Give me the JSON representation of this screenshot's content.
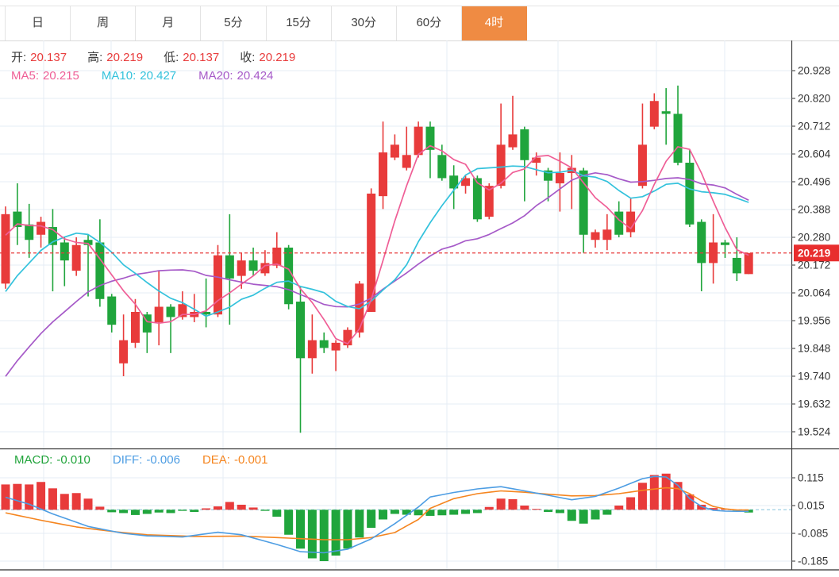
{
  "tabs": {
    "items": [
      {
        "label": "日",
        "selected": false
      },
      {
        "label": "周",
        "selected": false
      },
      {
        "label": "月",
        "selected": false
      },
      {
        "label": "5分",
        "selected": false
      },
      {
        "label": "15分",
        "selected": false
      },
      {
        "label": "30分",
        "selected": false
      },
      {
        "label": "60分",
        "selected": false
      },
      {
        "label": "4时",
        "selected": true
      }
    ]
  },
  "ohlc_legend": {
    "items": [
      {
        "label": "开:",
        "value": "20.137"
      },
      {
        "label": "高:",
        "value": "20.219"
      },
      {
        "label": "低:",
        "value": "20.137"
      },
      {
        "label": "收:",
        "value": "20.219"
      }
    ]
  },
  "ma_legend": {
    "items": [
      {
        "label": "MA5:",
        "value": "20.215",
        "color": "#ef5e96"
      },
      {
        "label": "MA10:",
        "value": "20.427",
        "color": "#33c2dc"
      },
      {
        "label": "MA20:",
        "value": "20.424",
        "color": "#a65ac8"
      }
    ]
  },
  "macd_legend": {
    "items": [
      {
        "label": "MACD:",
        "value": "-0.010",
        "color": "#21a43b"
      },
      {
        "label": "DIFF:",
        "value": "-0.006",
        "color": "#4d9de3"
      },
      {
        "label": "DEA:",
        "value": "-0.001",
        "color": "#f5851f"
      }
    ]
  },
  "price_axis": {
    "tick_labels": [
      "20.928",
      "20.820",
      "20.712",
      "20.604",
      "20.496",
      "20.388",
      "20.280",
      "20.172",
      "20.064",
      "19.956",
      "19.848",
      "19.740",
      "19.632",
      "19.524"
    ],
    "current_price_label": "20.219"
  },
  "macd_axis": {
    "tick_labels": [
      "0.115",
      "0.015",
      "-0.085",
      "-0.185"
    ]
  },
  "colors": {
    "up": "#e83b3b",
    "down": "#20a53c",
    "ma5": "#ef5e96",
    "ma10": "#33c2dc",
    "ma20": "#a65ac8",
    "diff": "#4d9de3",
    "dea": "#f5851f",
    "accent_tab": "#ef8b43",
    "badge": "#e82e2e",
    "grid": "#e6ecf4",
    "axis_line": "#3c3c3c",
    "dashed_price": "#e83b3b",
    "dashed_zero": "#9fd0e4",
    "label_text": "#3a3a3a",
    "value_red": "#e83b3b"
  },
  "chart_data": {
    "type": "candlestick",
    "timeframe": "4时",
    "panels": [
      {
        "name": "price",
        "type": "candlestick+ma",
        "y_ticks": [
          20.928,
          20.82,
          20.712,
          20.604,
          20.496,
          20.388,
          20.28,
          20.172,
          20.064,
          19.956,
          19.848,
          19.74,
          19.632,
          19.524
        ],
        "ylim": [
          19.45,
          20.99
        ],
        "current_price": 20.219,
        "ohlc_latest": {
          "open": 20.137,
          "high": 20.219,
          "low": 20.137,
          "close": 20.219
        },
        "ma_periods": [
          5,
          10,
          20
        ],
        "ma_latest": {
          "MA5": 20.215,
          "MA10": 20.427,
          "MA20": 20.424
        },
        "up_means": "close>=open (red)",
        "candles_ohlc": [
          [
            20.1,
            20.4,
            20.08,
            20.37
          ],
          [
            20.38,
            20.49,
            20.25,
            20.32
          ],
          [
            20.33,
            20.41,
            20.2,
            20.27
          ],
          [
            20.29,
            20.36,
            20.24,
            20.34
          ],
          [
            20.32,
            20.39,
            20.07,
            20.25
          ],
          [
            20.26,
            20.28,
            20.09,
            20.19
          ],
          [
            20.15,
            20.28,
            20.13,
            20.25
          ],
          [
            20.27,
            20.29,
            20.05,
            20.25
          ],
          [
            20.26,
            20.35,
            20.01,
            20.04
          ],
          [
            20.05,
            20.06,
            19.91,
            19.94
          ],
          [
            19.79,
            19.98,
            19.74,
            19.88
          ],
          [
            19.87,
            20.04,
            19.85,
            19.99
          ],
          [
            19.98,
            19.99,
            19.83,
            19.91
          ],
          [
            19.95,
            20.15,
            19.86,
            20.01
          ],
          [
            20.01,
            20.02,
            19.83,
            19.97
          ],
          [
            19.97,
            20.07,
            19.96,
            20.02
          ],
          [
            19.97,
            20.06,
            19.95,
            19.99
          ],
          [
            19.99,
            20.12,
            19.93,
            19.98
          ],
          [
            19.98,
            20.25,
            19.97,
            20.21
          ],
          [
            20.21,
            20.37,
            19.94,
            20.12
          ],
          [
            20.13,
            20.22,
            20.08,
            20.19
          ],
          [
            20.19,
            20.24,
            20.13,
            20.15
          ],
          [
            20.14,
            20.23,
            20.13,
            20.18
          ],
          [
            20.17,
            20.3,
            20.16,
            20.24
          ],
          [
            20.24,
            20.25,
            20.0,
            20.02
          ],
          [
            20.03,
            20.09,
            19.52,
            19.81
          ],
          [
            19.81,
            19.98,
            19.75,
            19.88
          ],
          [
            19.88,
            19.91,
            19.83,
            19.85
          ],
          [
            19.84,
            19.88,
            19.76,
            19.87
          ],
          [
            19.86,
            19.93,
            19.85,
            19.92
          ],
          [
            19.91,
            20.11,
            19.89,
            20.1
          ],
          [
            19.99,
            20.47,
            19.99,
            20.45
          ],
          [
            20.44,
            20.73,
            20.39,
            20.61
          ],
          [
            20.59,
            20.68,
            20.58,
            20.64
          ],
          [
            20.55,
            20.71,
            20.54,
            20.6
          ],
          [
            20.6,
            20.73,
            20.59,
            20.71
          ],
          [
            20.71,
            20.73,
            20.51,
            20.62
          ],
          [
            20.6,
            20.64,
            20.5,
            20.51
          ],
          [
            20.52,
            20.56,
            20.39,
            20.47
          ],
          [
            20.48,
            20.52,
            20.45,
            20.51
          ],
          [
            20.51,
            20.52,
            20.34,
            20.35
          ],
          [
            20.36,
            20.49,
            20.35,
            20.48
          ],
          [
            20.48,
            20.8,
            20.47,
            20.64
          ],
          [
            20.63,
            20.83,
            20.62,
            20.68
          ],
          [
            20.7,
            20.71,
            20.42,
            20.58
          ],
          [
            20.57,
            20.61,
            20.52,
            20.59
          ],
          [
            20.54,
            20.55,
            20.42,
            20.5
          ],
          [
            20.49,
            20.61,
            20.38,
            20.53
          ],
          [
            20.53,
            20.6,
            20.39,
            20.55
          ],
          [
            20.54,
            20.55,
            20.22,
            20.29
          ],
          [
            20.27,
            20.31,
            20.24,
            20.3
          ],
          [
            20.27,
            20.37,
            20.23,
            20.31
          ],
          [
            20.38,
            20.42,
            20.28,
            20.29
          ],
          [
            20.3,
            20.43,
            20.28,
            20.38
          ],
          [
            20.48,
            20.8,
            20.47,
            20.64
          ],
          [
            20.71,
            20.84,
            20.7,
            20.81
          ],
          [
            20.77,
            20.86,
            20.64,
            20.76
          ],
          [
            20.76,
            20.87,
            20.56,
            20.57
          ],
          [
            20.57,
            20.62,
            20.32,
            20.33
          ],
          [
            20.34,
            20.35,
            20.07,
            20.18
          ],
          [
            20.18,
            20.37,
            20.1,
            20.26
          ],
          [
            20.26,
            20.27,
            20.2,
            20.25
          ],
          [
            20.2,
            20.28,
            20.11,
            20.14
          ],
          [
            20.137,
            20.219,
            20.137,
            20.219
          ]
        ],
        "warmup_closes_for_ma": [
          19.0,
          19.1,
          19.2,
          19.3,
          19.35,
          19.4,
          19.45,
          19.5,
          19.55,
          19.6,
          19.65,
          19.7,
          19.78,
          19.85,
          19.92,
          20.0,
          20.1,
          20.3,
          20.35,
          20.32
        ]
      },
      {
        "name": "macd",
        "type": "bar+line",
        "y_ticks": [
          0.115,
          0.015,
          -0.085,
          -0.185
        ],
        "latest": {
          "MACD": -0.01,
          "DIFF": -0.006,
          "DEA": -0.001
        },
        "histogram": [
          0.091,
          0.093,
          0.091,
          0.1,
          0.077,
          0.057,
          0.06,
          0.04,
          0.011,
          -0.009,
          -0.012,
          -0.019,
          -0.015,
          -0.01,
          -0.012,
          -0.004,
          -0.008,
          0.005,
          0.012,
          0.028,
          0.018,
          0.008,
          -0.004,
          -0.025,
          -0.09,
          -0.14,
          -0.175,
          -0.185,
          -0.165,
          -0.14,
          -0.1,
          -0.065,
          -0.035,
          -0.015,
          -0.018,
          -0.02,
          -0.022,
          -0.02,
          -0.018,
          -0.015,
          -0.012,
          0.01,
          0.04,
          0.038,
          0.015,
          0.003,
          -0.008,
          -0.012,
          -0.04,
          -0.05,
          -0.035,
          -0.018,
          0.015,
          0.045,
          0.097,
          0.125,
          0.13,
          0.1,
          0.055,
          0.018,
          0.006,
          0.003,
          -0.002,
          -0.01
        ],
        "diff_points": [
          [
            0,
            0.045
          ],
          [
            2,
            0.02
          ],
          [
            4,
            -0.015
          ],
          [
            7,
            -0.06
          ],
          [
            10,
            -0.085
          ],
          [
            12,
            -0.094
          ],
          [
            15,
            -0.098
          ],
          [
            18,
            -0.081
          ],
          [
            20,
            -0.09
          ],
          [
            23,
            -0.125
          ],
          [
            25,
            -0.151
          ],
          [
            27,
            -0.155
          ],
          [
            29,
            -0.142
          ],
          [
            31,
            -0.105
          ],
          [
            33,
            -0.05
          ],
          [
            35,
            0.01
          ],
          [
            36,
            0.046
          ],
          [
            38,
            0.062
          ],
          [
            40,
            0.075
          ],
          [
            42,
            0.083
          ],
          [
            44,
            0.068
          ],
          [
            46,
            0.052
          ],
          [
            48,
            0.036
          ],
          [
            50,
            0.048
          ],
          [
            52,
            0.078
          ],
          [
            54,
            0.112
          ],
          [
            55,
            0.12
          ],
          [
            56,
            0.118
          ],
          [
            57,
            0.088
          ],
          [
            58,
            0.04
          ],
          [
            59,
            0.012
          ],
          [
            60,
            -0.002
          ],
          [
            61,
            -0.005
          ],
          [
            63,
            -0.006
          ]
        ],
        "dea_points": [
          [
            0,
            -0.011
          ],
          [
            3,
            -0.038
          ],
          [
            6,
            -0.062
          ],
          [
            9,
            -0.078
          ],
          [
            12,
            -0.09
          ],
          [
            16,
            -0.096
          ],
          [
            20,
            -0.095
          ],
          [
            23,
            -0.1
          ],
          [
            25,
            -0.104
          ],
          [
            27,
            -0.108
          ],
          [
            29,
            -0.108
          ],
          [
            31,
            -0.1
          ],
          [
            33,
            -0.082
          ],
          [
            35,
            -0.035
          ],
          [
            36,
            0.005
          ],
          [
            38,
            0.04
          ],
          [
            40,
            0.058
          ],
          [
            42,
            0.068
          ],
          [
            44,
            0.063
          ],
          [
            46,
            0.056
          ],
          [
            48,
            0.05
          ],
          [
            50,
            0.051
          ],
          [
            52,
            0.058
          ],
          [
            54,
            0.07
          ],
          [
            56,
            0.079
          ],
          [
            57,
            0.076
          ],
          [
            58,
            0.058
          ],
          [
            59,
            0.032
          ],
          [
            60,
            0.012
          ],
          [
            61,
            0.003
          ],
          [
            62,
            -0.001
          ],
          [
            63,
            -0.001
          ]
        ]
      }
    ]
  }
}
